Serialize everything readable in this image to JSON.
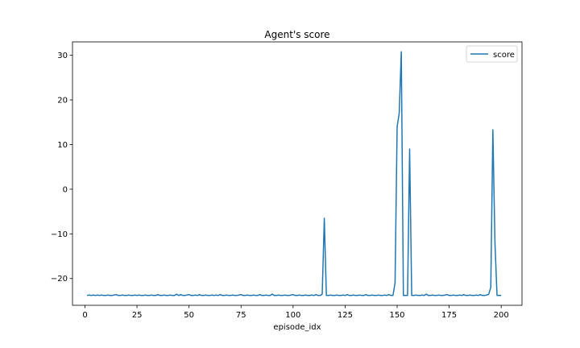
{
  "chart_data": {
    "type": "line",
    "title": "Agent's score",
    "xlabel": "episode_idx",
    "ylabel": "",
    "xlim": [
      -6,
      210
    ],
    "ylim": [
      -26,
      33
    ],
    "xticks": [
      0,
      25,
      50,
      75,
      100,
      125,
      150,
      175,
      200
    ],
    "yticks": [
      -20,
      -10,
      0,
      10,
      20,
      30
    ],
    "grid": false,
    "legend_position": "top-right",
    "series_color": "#1f77b4",
    "series": [
      {
        "name": "score",
        "x": [
          1,
          2,
          3,
          4,
          5,
          6,
          7,
          8,
          9,
          10,
          11,
          12,
          13,
          14,
          15,
          16,
          17,
          18,
          19,
          20,
          21,
          22,
          23,
          24,
          25,
          26,
          27,
          28,
          29,
          30,
          31,
          32,
          33,
          34,
          35,
          36,
          37,
          38,
          39,
          40,
          41,
          42,
          43,
          44,
          45,
          46,
          47,
          48,
          49,
          50,
          51,
          52,
          53,
          54,
          55,
          56,
          57,
          58,
          59,
          60,
          61,
          62,
          63,
          64,
          65,
          66,
          67,
          68,
          69,
          70,
          71,
          72,
          73,
          74,
          75,
          76,
          77,
          78,
          79,
          80,
          81,
          82,
          83,
          84,
          85,
          86,
          87,
          88,
          89,
          90,
          91,
          92,
          93,
          94,
          95,
          96,
          97,
          98,
          99,
          100,
          101,
          102,
          103,
          104,
          105,
          106,
          107,
          108,
          109,
          110,
          111,
          112,
          113,
          114,
          115,
          116,
          117,
          118,
          119,
          120,
          121,
          122,
          123,
          124,
          125,
          126,
          127,
          128,
          129,
          130,
          131,
          132,
          133,
          134,
          135,
          136,
          137,
          138,
          139,
          140,
          141,
          142,
          143,
          144,
          145,
          146,
          147,
          148,
          149,
          150,
          151,
          152,
          153,
          154,
          155,
          156,
          157,
          158,
          159,
          160,
          161,
          162,
          163,
          164,
          165,
          166,
          167,
          168,
          169,
          170,
          171,
          172,
          173,
          174,
          175,
          176,
          177,
          178,
          179,
          180,
          181,
          182,
          183,
          184,
          185,
          186,
          187,
          188,
          189,
          190,
          191,
          192,
          193,
          194,
          195,
          196,
          197,
          198,
          199,
          200
        ],
        "values": [
          -23.8,
          -23.7,
          -23.8,
          -23.7,
          -23.8,
          -23.7,
          -23.8,
          -23.7,
          -23.8,
          -23.8,
          -23.7,
          -23.8,
          -23.8,
          -23.7,
          -23.6,
          -23.8,
          -23.8,
          -23.7,
          -23.8,
          -23.8,
          -23.7,
          -23.8,
          -23.8,
          -23.7,
          -23.8,
          -23.7,
          -23.8,
          -23.8,
          -23.7,
          -23.8,
          -23.8,
          -23.7,
          -23.8,
          -23.8,
          -23.6,
          -23.8,
          -23.8,
          -23.7,
          -23.8,
          -23.8,
          -23.7,
          -23.8,
          -23.8,
          -23.5,
          -23.8,
          -23.6,
          -23.8,
          -23.8,
          -23.7,
          -23.6,
          -23.8,
          -23.8,
          -23.7,
          -23.8,
          -23.6,
          -23.8,
          -23.8,
          -23.7,
          -23.8,
          -23.8,
          -23.7,
          -23.8,
          -23.7,
          -23.8,
          -23.6,
          -23.8,
          -23.8,
          -23.7,
          -23.8,
          -23.8,
          -23.7,
          -23.8,
          -23.8,
          -23.7,
          -23.6,
          -23.8,
          -23.8,
          -23.7,
          -23.8,
          -23.8,
          -23.7,
          -23.8,
          -23.8,
          -23.6,
          -23.8,
          -23.8,
          -23.7,
          -23.8,
          -23.8,
          -23.5,
          -23.8,
          -23.8,
          -23.7,
          -23.8,
          -23.8,
          -23.7,
          -23.8,
          -23.8,
          -23.7,
          -23.6,
          -23.8,
          -23.8,
          -23.7,
          -23.8,
          -23.8,
          -23.7,
          -23.8,
          -23.8,
          -23.7,
          -23.8,
          -23.6,
          -23.8,
          -23.8,
          -23.5,
          -6.5,
          -23.8,
          -23.8,
          -23.7,
          -23.8,
          -23.8,
          -23.7,
          -23.8,
          -23.8,
          -23.7,
          -23.8,
          -23.6,
          -23.8,
          -23.8,
          -23.7,
          -23.8,
          -23.8,
          -23.7,
          -23.8,
          -23.8,
          -23.6,
          -23.8,
          -23.8,
          -23.7,
          -23.8,
          -23.8,
          -23.7,
          -23.8,
          -23.8,
          -23.7,
          -23.8,
          -23.6,
          -23.8,
          -23.8,
          -21.0,
          14.0,
          17.0,
          30.8,
          -23.8,
          -23.8,
          -23.8,
          9.0,
          -23.8,
          -23.8,
          -23.7,
          -23.8,
          -23.8,
          -23.7,
          -23.8,
          -23.5,
          -23.8,
          -23.8,
          -23.7,
          -23.8,
          -23.8,
          -23.7,
          -23.8,
          -23.8,
          -23.7,
          -23.6,
          -23.8,
          -23.8,
          -23.7,
          -23.8,
          -23.8,
          -23.7,
          -23.8,
          -23.6,
          -23.8,
          -23.8,
          -23.7,
          -23.8,
          -23.8,
          -23.7,
          -23.8,
          -23.6,
          -23.8,
          -23.8,
          -23.7,
          -23.5,
          -22.0,
          13.3,
          -12.0,
          -23.8,
          -23.8,
          -23.8
        ]
      }
    ]
  }
}
